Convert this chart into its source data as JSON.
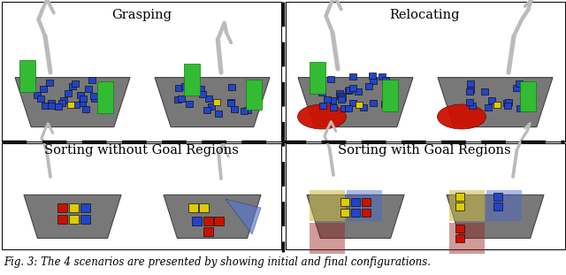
{
  "title_top_left": "Grasping",
  "title_top_right": "Relocating",
  "title_bottom_left": "Sorting without Goal Regions",
  "title_bottom_right": "Sorting with Goal Regions",
  "fig_width": 6.4,
  "fig_height": 3.11,
  "dpi": 100,
  "background_color": "#ffffff",
  "title_fontsize": 10.5,
  "caption_fontsize": 8.5,
  "blue_block_color": "#2244cc",
  "green_block_color": "#33bb33",
  "red_color": "#cc1100",
  "yellow_block_color": "#ddcc00",
  "arm_color": "#bbbbbb",
  "platform_color": "#787878",
  "platform_edge": "#444444",
  "panel_edge": "#111111",
  "divider_color": "#111111",
  "sorting_region_yellow": "#c8b840",
  "sorting_region_blue": "#4466cc",
  "sorting_region_red": "#992222"
}
